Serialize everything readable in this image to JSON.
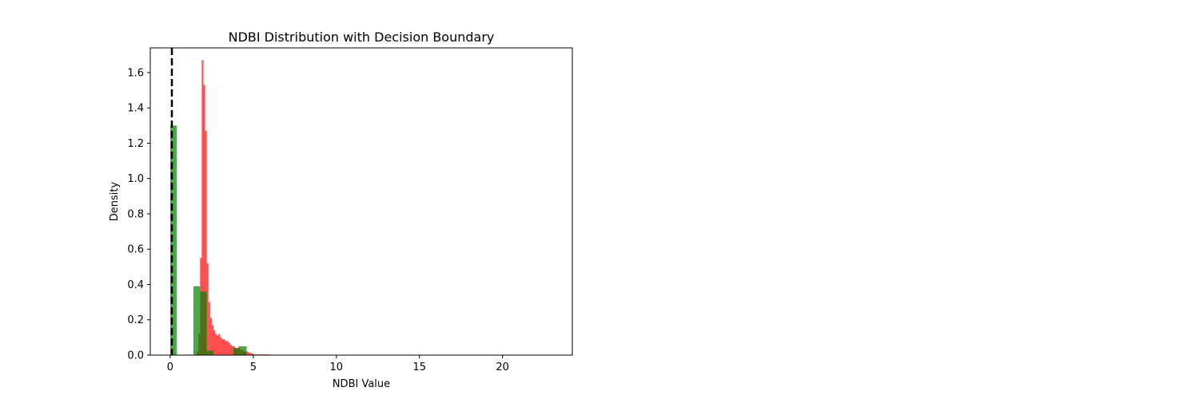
{
  "chart_data": {
    "type": "bar",
    "title": "NDBI Distribution with Decision Boundary",
    "xlabel": "NDBI Value",
    "ylabel": "Density",
    "xlim": [
      -1.2,
      24.2
    ],
    "ylim": [
      0,
      1.74
    ],
    "xticks": [
      0,
      5,
      10,
      15,
      20
    ],
    "yticks": [
      0.0,
      0.2,
      0.4,
      0.6,
      0.8,
      1.0,
      1.2,
      1.4,
      1.6
    ],
    "xtick_labels": [
      "0",
      "5",
      "10",
      "15",
      "20"
    ],
    "ytick_labels": [
      "0.0",
      "0.2",
      "0.4",
      "0.6",
      "0.8",
      "1.0",
      "1.2",
      "1.4",
      "1.6"
    ],
    "grid": false,
    "legend": "none",
    "decision_boundary": {
      "x": 0.1,
      "color": "#000000",
      "style": "dashed"
    },
    "series": [
      {
        "color": "#ff0000",
        "opacity": 0.7,
        "bins": [
          {
            "x0": 1.6,
            "x1": 1.7,
            "y": 0.02
          },
          {
            "x0": 1.7,
            "x1": 1.8,
            "y": 0.12
          },
          {
            "x0": 1.8,
            "x1": 1.9,
            "y": 0.55
          },
          {
            "x0": 1.9,
            "x1": 2.0,
            "y": 1.67
          },
          {
            "x0": 2.0,
            "x1": 2.1,
            "y": 1.53
          },
          {
            "x0": 2.1,
            "x1": 2.2,
            "y": 1.27
          },
          {
            "x0": 2.2,
            "x1": 2.3,
            "y": 0.52
          },
          {
            "x0": 2.3,
            "x1": 2.4,
            "y": 0.3
          },
          {
            "x0": 2.4,
            "x1": 2.5,
            "y": 0.21
          },
          {
            "x0": 2.5,
            "x1": 2.6,
            "y": 0.17
          },
          {
            "x0": 2.6,
            "x1": 2.7,
            "y": 0.14
          },
          {
            "x0": 2.7,
            "x1": 2.8,
            "y": 0.12
          },
          {
            "x0": 2.8,
            "x1": 2.9,
            "y": 0.11
          },
          {
            "x0": 2.9,
            "x1": 3.0,
            "y": 0.12
          },
          {
            "x0": 3.0,
            "x1": 3.1,
            "y": 0.1
          },
          {
            "x0": 3.1,
            "x1": 3.2,
            "y": 0.09
          },
          {
            "x0": 3.2,
            "x1": 3.3,
            "y": 0.09
          },
          {
            "x0": 3.3,
            "x1": 3.4,
            "y": 0.08
          },
          {
            "x0": 3.4,
            "x1": 3.5,
            "y": 0.08
          },
          {
            "x0": 3.5,
            "x1": 3.6,
            "y": 0.07
          },
          {
            "x0": 3.6,
            "x1": 3.7,
            "y": 0.06
          },
          {
            "x0": 3.7,
            "x1": 3.8,
            "y": 0.05
          },
          {
            "x0": 3.8,
            "x1": 3.9,
            "y": 0.05
          },
          {
            "x0": 3.9,
            "x1": 4.0,
            "y": 0.04
          },
          {
            "x0": 4.0,
            "x1": 4.1,
            "y": 0.04
          },
          {
            "x0": 4.1,
            "x1": 4.2,
            "y": 0.05
          },
          {
            "x0": 4.2,
            "x1": 4.3,
            "y": 0.03
          },
          {
            "x0": 4.3,
            "x1": 4.4,
            "y": 0.03
          },
          {
            "x0": 4.4,
            "x1": 4.5,
            "y": 0.02
          },
          {
            "x0": 4.5,
            "x1": 4.6,
            "y": 0.02
          },
          {
            "x0": 4.6,
            "x1": 4.7,
            "y": 0.02
          },
          {
            "x0": 4.7,
            "x1": 4.8,
            "y": 0.015
          },
          {
            "x0": 4.8,
            "x1": 4.9,
            "y": 0.01
          },
          {
            "x0": 4.9,
            "x1": 5.0,
            "y": 0.01
          },
          {
            "x0": 5.0,
            "x1": 6.0,
            "y": 0.004
          },
          {
            "x0": 6.0,
            "x1": 23.2,
            "y": 0.002
          }
        ]
      },
      {
        "color": "#008000",
        "opacity": 0.7,
        "bins": [
          {
            "x0": 0.0,
            "x1": 0.4,
            "y": 1.3
          },
          {
            "x0": 0.4,
            "x1": 1.0,
            "y": 0.0
          },
          {
            "x0": 1.0,
            "x1": 1.4,
            "y": 0.003
          },
          {
            "x0": 1.4,
            "x1": 1.8,
            "y": 0.39
          },
          {
            "x0": 1.8,
            "x1": 2.2,
            "y": 0.36
          },
          {
            "x0": 2.2,
            "x1": 2.6,
            "y": 0.025
          },
          {
            "x0": 2.6,
            "x1": 3.8,
            "y": 0.0
          },
          {
            "x0": 3.8,
            "x1": 4.2,
            "y": 0.04
          },
          {
            "x0": 4.2,
            "x1": 4.6,
            "y": 0.05
          }
        ]
      }
    ]
  }
}
